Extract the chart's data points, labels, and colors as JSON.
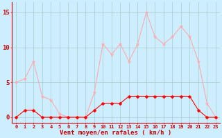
{
  "x": [
    0,
    1,
    2,
    3,
    4,
    5,
    6,
    7,
    8,
    9,
    10,
    11,
    12,
    13,
    14,
    15,
    16,
    17,
    18,
    19,
    20,
    21,
    22,
    23
  ],
  "wind_avg": [
    0,
    1,
    1,
    0,
    0,
    0,
    0,
    0,
    0,
    1,
    2,
    2,
    2,
    3,
    3,
    3,
    3,
    3,
    3,
    3,
    3,
    1,
    0,
    0
  ],
  "wind_gust": [
    5,
    5.5,
    8,
    3,
    2.5,
    0.5,
    0,
    0,
    0,
    3.5,
    10.5,
    9,
    10.5,
    8,
    10.5,
    15,
    11.5,
    10.5,
    11.5,
    13,
    11.5,
    8,
    2,
    0
  ],
  "avg_color": "#ff0000",
  "gust_color": "#ffaaaa",
  "bg_color": "#cceeff",
  "grid_color": "#aacccc",
  "xlabel": "Vent moyen/en rafales ( kn/h )",
  "ylabel_ticks": [
    0,
    5,
    10,
    15
  ],
  "xlim": [
    -0.5,
    23.5
  ],
  "ylim": [
    -0.8,
    16.5
  ],
  "axis_color": "#cc0000",
  "tick_color": "#cc0000",
  "xlabel_fontsize": 6.5,
  "ytick_fontsize": 6.5,
  "xtick_fontsize": 5.0
}
